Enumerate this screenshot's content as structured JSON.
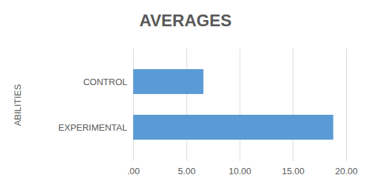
{
  "chart_data": {
    "type": "bar",
    "orientation": "horizontal",
    "title": "AVERAGES",
    "y_label": "ABILITIES",
    "categories": [
      "CONTROL",
      "EXPERIMENTAL"
    ],
    "values": [
      6.6,
      18.8
    ],
    "color": "#5b9bd5",
    "xlim": [
      0,
      20
    ],
    "xticks": [
      {
        "value": 0,
        "label": ".00"
      },
      {
        "value": 5,
        "label": "5.00"
      },
      {
        "value": 10,
        "label": "10.00"
      },
      {
        "value": 15,
        "label": "15.00"
      },
      {
        "value": 20,
        "label": "20.00"
      }
    ],
    "grid": true
  }
}
